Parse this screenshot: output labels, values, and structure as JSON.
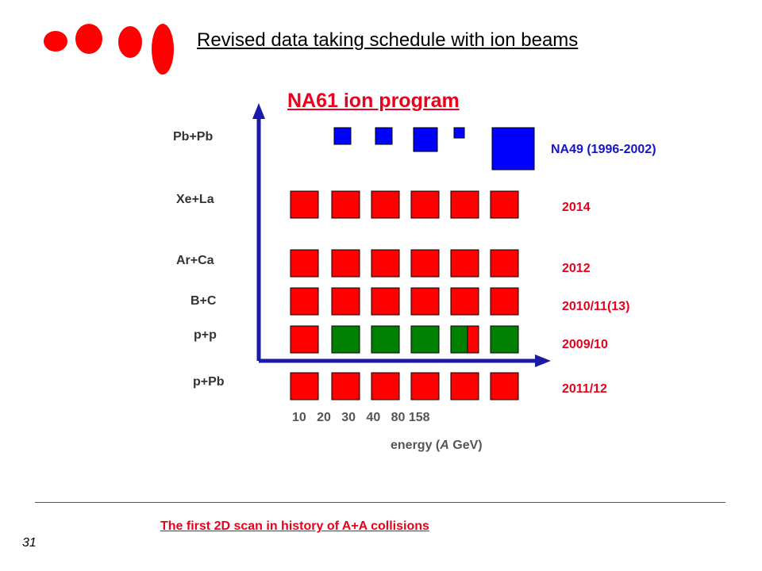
{
  "slide": {
    "title": "Revised data taking schedule with ion beams",
    "number": "31"
  },
  "program_title": "NA61 ion program",
  "x_axis": {
    "ticks": [
      "10",
      "20",
      "30",
      "40",
      "80",
      "158"
    ],
    "label_prefix": "energy (",
    "label_italic": "A",
    "label_suffix": " GeV)"
  },
  "rows": [
    {
      "system": "Pb+Pb",
      "year": "NA49 (1996-2002)",
      "year_color": "#1515c8"
    },
    {
      "system": "Xe+La",
      "year": "2014",
      "year_color": "#e8001c"
    },
    {
      "system": "Ar+Ca",
      "year": "2012",
      "year_color": "#e8001c"
    },
    {
      "system": "B+C",
      "year": "2010/11(13)",
      "year_color": "#e8001c"
    },
    {
      "system": "p+p",
      "year": "2009/10",
      "year_color": "#e8001c"
    },
    {
      "system": "p+Pb",
      "year": "2011/12",
      "year_color": "#e8001c"
    }
  ],
  "grid_status": {
    "legend": "cell colors: red = planned NA61 data taking, green = recorded, blue = NA49 data",
    "Pb+Pb": [
      "blue",
      "blue",
      "blue",
      "blue",
      "blue"
    ],
    "Xe+La": [
      "red",
      "red",
      "red",
      "red",
      "red",
      "red"
    ],
    "Ar+Ca": [
      "red",
      "red",
      "red",
      "red",
      "red",
      "red"
    ],
    "B+C": [
      "red",
      "red",
      "red",
      "red",
      "red",
      "red"
    ],
    "p+p": [
      "red",
      "green",
      "green",
      "green",
      "green/red",
      "green"
    ],
    "p+Pb": [
      "red",
      "red",
      "red",
      "red",
      "red",
      "red"
    ]
  },
  "colors": {
    "red": "#ff0000",
    "green": "#008000",
    "blue": "#0000ff",
    "axis": "#1a1aa6",
    "accent_text": "#e8001c",
    "na49_text": "#1515c8"
  },
  "footer_note": "The first 2D scan in history of A+A collisions"
}
